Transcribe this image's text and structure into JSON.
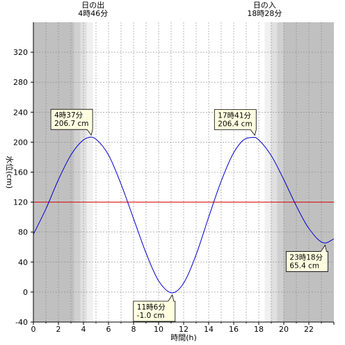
{
  "chart_data": {
    "type": "line",
    "xlabel": "時間(h)",
    "ylabel": "水位(cm)",
    "xlim": [
      0,
      24
    ],
    "ylim": [
      -40,
      360
    ],
    "x_ticks": [
      0,
      2,
      4,
      6,
      8,
      10,
      12,
      14,
      16,
      18,
      20,
      22
    ],
    "x_tick_labels": [
      "0",
      "2",
      "4",
      "6",
      "8",
      "10",
      "12",
      "14",
      "16",
      "18",
      "20",
      "22"
    ],
    "y_ticks": [
      -40,
      0,
      40,
      80,
      120,
      160,
      200,
      240,
      280,
      320
    ],
    "y_tick_labels": [
      "-40",
      "0",
      "40",
      "80",
      "120",
      "160",
      "200",
      "240",
      "280",
      "320"
    ],
    "grid": true,
    "reference_line": {
      "value": 120,
      "color": "#dd0000"
    },
    "line_color": "#0000cc",
    "extrema": [
      {
        "x": 4.617,
        "y": 206.7,
        "time": "4時37分",
        "level": "206.7 cm"
      },
      {
        "x": 11.1,
        "y": -1.0,
        "time": "11時6分",
        "level": "-1.0 cm"
      },
      {
        "x": 17.683,
        "y": 206.4,
        "time": "17時41分",
        "level": "206.4 cm"
      },
      {
        "x": 23.3,
        "y": 65.4,
        "time": "23時18分",
        "level": "65.4 cm"
      }
    ],
    "series": [
      {
        "x": [
          0,
          1,
          2,
          3,
          4,
          4.617,
          5,
          6,
          7,
          8,
          9,
          10,
          11.1,
          12,
          13,
          14,
          15,
          16,
          17,
          17.683,
          18,
          19,
          20,
          21,
          22,
          23.3,
          24
        ],
        "values": [
          77,
          111,
          150,
          183,
          203,
          206.7,
          204,
          183,
          144,
          98,
          52,
          15,
          -1,
          12,
          50,
          100,
          148,
          186,
          205,
          206.4,
          203,
          182,
          150,
          115,
          85,
          65.4,
          71
        ]
      }
    ],
    "sunrise": {
      "x": 4.767,
      "title": "日の出",
      "time": "4時46分"
    },
    "sunset": {
      "x": 18.467,
      "title": "日の入",
      "time": "18時28分"
    },
    "shading": {
      "night_color": "#c0c0c0",
      "twilight_colors": [
        "#d0d0d0",
        "#e0e0e0",
        "#f0f0f0"
      ],
      "day_color": "#ffffff"
    }
  }
}
